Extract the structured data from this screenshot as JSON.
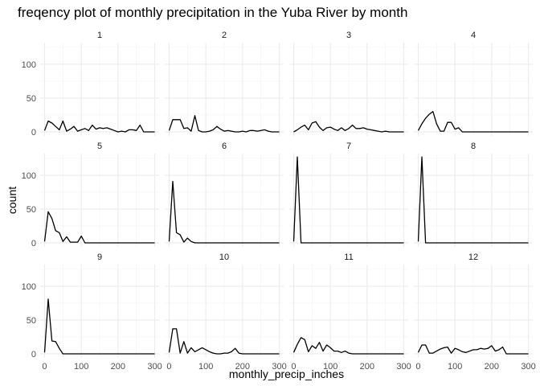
{
  "chart_data": {
    "type": "line",
    "title": "freqency plot of monthly precipitation in the Yuba River by month",
    "xlabel": "monthly_precip_inches",
    "ylabel": "count",
    "xlim": [
      -12,
      312
    ],
    "ylim": [
      -6,
      132
    ],
    "x_ticks": [
      0,
      100,
      200,
      300
    ],
    "y_ticks": [
      0,
      50,
      100
    ],
    "grid": true,
    "facet_layout": {
      "rows": 3,
      "cols": 4
    },
    "panels": [
      {
        "label": "1",
        "x": [
          0,
          10,
          20,
          30,
          40,
          50,
          60,
          70,
          80,
          90,
          100,
          110,
          120,
          130,
          140,
          150,
          160,
          170,
          180,
          190,
          200,
          210,
          220,
          230,
          240,
          250,
          260,
          270,
          280,
          290,
          300
        ],
        "y": [
          2,
          16,
          13,
          8,
          3,
          16,
          1,
          4,
          8,
          1,
          3,
          5,
          2,
          10,
          4,
          6,
          5,
          6,
          4,
          2,
          0,
          1,
          0,
          3,
          3,
          2,
          10,
          0,
          0,
          0,
          0
        ]
      },
      {
        "label": "2",
        "x": [
          0,
          10,
          20,
          30,
          40,
          50,
          60,
          70,
          80,
          90,
          100,
          110,
          120,
          130,
          140,
          150,
          160,
          170,
          180,
          190,
          200,
          210,
          220,
          230,
          240,
          250,
          260,
          270,
          280,
          290,
          300
        ],
        "y": [
          2,
          18,
          18,
          18,
          5,
          6,
          1,
          24,
          2,
          0,
          0,
          1,
          3,
          8,
          4,
          1,
          2,
          1,
          0,
          0,
          1,
          0,
          2,
          2,
          1,
          2,
          3,
          1,
          0,
          0,
          0
        ]
      },
      {
        "label": "3",
        "x": [
          0,
          10,
          20,
          30,
          40,
          50,
          60,
          70,
          80,
          90,
          100,
          110,
          120,
          130,
          140,
          150,
          160,
          170,
          180,
          190,
          200,
          210,
          220,
          230,
          240,
          250,
          260,
          270,
          280,
          290,
          300
        ],
        "y": [
          0,
          3,
          7,
          10,
          3,
          13,
          15,
          7,
          2,
          6,
          7,
          4,
          2,
          6,
          2,
          5,
          10,
          5,
          5,
          6,
          4,
          3,
          2,
          1,
          0,
          1,
          0,
          0,
          0,
          0,
          0
        ]
      },
      {
        "label": "4",
        "x": [
          0,
          10,
          20,
          30,
          40,
          50,
          60,
          70,
          80,
          90,
          100,
          110,
          120,
          130,
          140,
          150,
          160,
          170,
          180,
          190,
          200,
          210,
          220,
          230,
          240,
          250,
          260,
          270,
          280,
          290,
          300
        ],
        "y": [
          2,
          12,
          20,
          26,
          30,
          12,
          1,
          1,
          14,
          14,
          4,
          6,
          0,
          0,
          0,
          0,
          0,
          0,
          0,
          0,
          0,
          0,
          0,
          0,
          0,
          0,
          0,
          0,
          0,
          0,
          0
        ]
      },
      {
        "label": "5",
        "x": [
          0,
          10,
          20,
          30,
          40,
          50,
          60,
          70,
          80,
          90,
          100,
          110,
          120,
          130,
          140,
          150,
          160,
          170,
          180,
          190,
          200,
          210,
          220,
          230,
          240,
          250,
          260,
          270,
          280,
          290,
          300
        ],
        "y": [
          2,
          46,
          36,
          18,
          15,
          2,
          9,
          1,
          1,
          1,
          10,
          0,
          0,
          0,
          0,
          0,
          0,
          0,
          0,
          0,
          0,
          0,
          0,
          0,
          0,
          0,
          0,
          0,
          0,
          0,
          0
        ]
      },
      {
        "label": "6",
        "x": [
          0,
          10,
          20,
          30,
          40,
          50,
          60,
          70,
          80,
          90,
          100,
          110,
          120,
          130,
          140,
          150,
          160,
          170,
          180,
          190,
          200,
          210,
          220,
          230,
          240,
          250,
          260,
          270,
          280,
          290,
          300
        ],
        "y": [
          2,
          91,
          15,
          12,
          1,
          7,
          2,
          0,
          0,
          0,
          0,
          0,
          0,
          0,
          0,
          0,
          0,
          0,
          0,
          0,
          0,
          0,
          0,
          0,
          0,
          0,
          0,
          0,
          0,
          0,
          0
        ]
      },
      {
        "label": "7",
        "x": [
          0,
          10,
          20,
          30,
          40,
          50,
          60,
          70,
          80,
          90,
          100,
          110,
          120,
          130,
          140,
          150,
          160,
          170,
          180,
          190,
          200,
          210,
          220,
          230,
          240,
          250,
          260,
          270,
          280,
          290,
          300
        ],
        "y": [
          2,
          127,
          0,
          0,
          0,
          0,
          0,
          0,
          0,
          0,
          0,
          0,
          0,
          0,
          0,
          0,
          0,
          0,
          0,
          0,
          0,
          0,
          0,
          0,
          0,
          0,
          0,
          0,
          0,
          0,
          0
        ]
      },
      {
        "label": "8",
        "x": [
          0,
          10,
          20,
          30,
          40,
          50,
          60,
          70,
          80,
          90,
          100,
          110,
          120,
          130,
          140,
          150,
          160,
          170,
          180,
          190,
          200,
          210,
          220,
          230,
          240,
          250,
          260,
          270,
          280,
          290,
          300
        ],
        "y": [
          2,
          127,
          0,
          0,
          0,
          0,
          0,
          0,
          0,
          0,
          0,
          0,
          0,
          0,
          0,
          0,
          0,
          0,
          0,
          0,
          0,
          0,
          0,
          0,
          0,
          0,
          0,
          0,
          0,
          0,
          0
        ]
      },
      {
        "label": "9",
        "x": [
          0,
          10,
          20,
          30,
          40,
          50,
          60,
          70,
          80,
          90,
          100,
          110,
          120,
          130,
          140,
          150,
          160,
          170,
          180,
          190,
          200,
          210,
          220,
          230,
          240,
          250,
          260,
          270,
          280,
          290,
          300
        ],
        "y": [
          2,
          81,
          19,
          18,
          8,
          0,
          0,
          0,
          0,
          0,
          0,
          0,
          0,
          0,
          0,
          0,
          0,
          0,
          0,
          0,
          0,
          0,
          0,
          0,
          0,
          0,
          0,
          0,
          0,
          0,
          0
        ]
      },
      {
        "label": "10",
        "x": [
          0,
          10,
          20,
          30,
          40,
          50,
          60,
          70,
          80,
          90,
          100,
          110,
          120,
          130,
          140,
          150,
          160,
          170,
          180,
          190,
          200,
          210,
          220,
          230,
          240,
          250,
          260,
          270,
          280,
          290,
          300
        ],
        "y": [
          2,
          37,
          37,
          1,
          18,
          1,
          9,
          3,
          6,
          9,
          6,
          3,
          1,
          0,
          0,
          1,
          1,
          3,
          8,
          1,
          0,
          0,
          0,
          0,
          0,
          0,
          0,
          0,
          0,
          0,
          0
        ]
      },
      {
        "label": "11",
        "x": [
          0,
          10,
          20,
          30,
          40,
          50,
          60,
          70,
          80,
          90,
          100,
          110,
          120,
          130,
          140,
          150,
          160,
          170,
          180,
          190,
          200,
          210,
          220,
          230,
          240,
          250,
          260,
          270,
          280,
          290,
          300
        ],
        "y": [
          2,
          14,
          24,
          21,
          3,
          12,
          8,
          17,
          4,
          13,
          9,
          4,
          4,
          2,
          4,
          1,
          0,
          0,
          0,
          0,
          0,
          0,
          0,
          0,
          0,
          0,
          0,
          0,
          0,
          0,
          0
        ]
      },
      {
        "label": "12",
        "x": [
          0,
          10,
          20,
          30,
          40,
          50,
          60,
          70,
          80,
          90,
          100,
          110,
          120,
          130,
          140,
          150,
          160,
          170,
          180,
          190,
          200,
          210,
          220,
          230,
          240,
          250,
          260,
          270,
          280,
          290,
          300
        ],
        "y": [
          2,
          13,
          13,
          1,
          1,
          4,
          7,
          9,
          10,
          1,
          8,
          6,
          3,
          2,
          4,
          6,
          6,
          8,
          7,
          8,
          12,
          4,
          6,
          10,
          0,
          0,
          0,
          0,
          0,
          0,
          0
        ]
      }
    ]
  }
}
